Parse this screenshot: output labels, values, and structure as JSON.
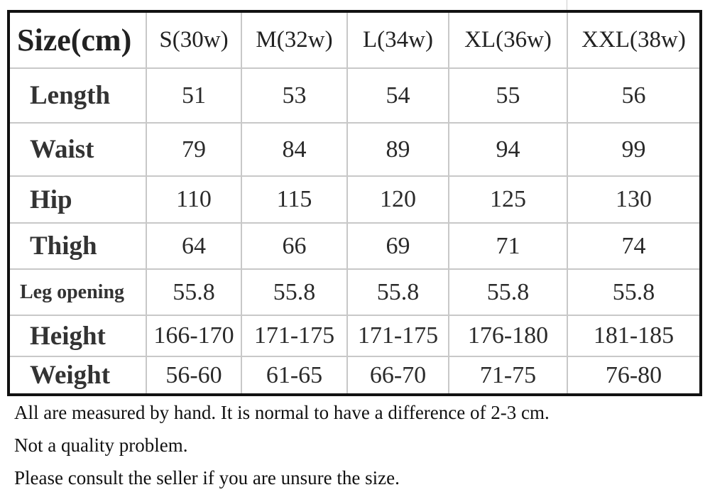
{
  "table": {
    "corner_label": "Size(cm)",
    "columns": [
      "S(30w)",
      "M(32w)",
      "L(34w)",
      "XL(36w)",
      "XXL(38w)"
    ],
    "rows": [
      {
        "label": "Length",
        "values": [
          "51",
          "53",
          "54",
          "55",
          "56"
        ]
      },
      {
        "label": "Waist",
        "values": [
          "79",
          "84",
          "89",
          "94",
          "99"
        ]
      },
      {
        "label": "Hip",
        "values": [
          "110",
          "115",
          "120",
          "125",
          "130"
        ]
      },
      {
        "label": "Thigh",
        "values": [
          "64",
          "66",
          "69",
          "71",
          "74"
        ]
      },
      {
        "label": "Leg opening",
        "values": [
          "55.8",
          "55.8",
          "55.8",
          "55.8",
          "55.8"
        ]
      },
      {
        "label": "Height",
        "values": [
          "166-170",
          "171-175",
          "171-175",
          "176-180",
          "181-185"
        ]
      },
      {
        "label": "Weight",
        "values": [
          "56-60",
          "61-65",
          "66-70",
          "71-75",
          "76-80"
        ]
      }
    ]
  },
  "notes": [
    "All are measured by hand. It is normal to have a difference of 2-3 cm.",
    "Not a quality problem.",
    "Please consult the seller if you are unsure the size."
  ]
}
